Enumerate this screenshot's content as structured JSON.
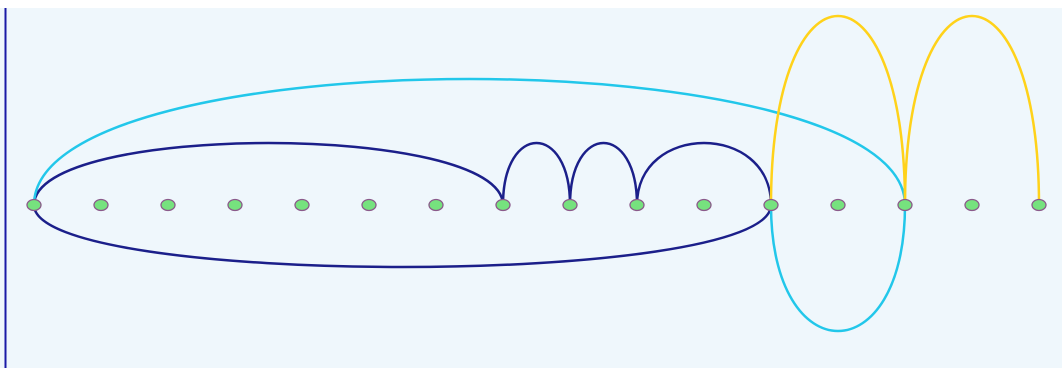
{
  "diagram": {
    "type": "arc-diagram",
    "background_color": "#eff7fc",
    "border_color": "#1a1aa6",
    "node_fill_color": "#76e27e",
    "node_stroke_color": "#8a5a8a",
    "node_count": 16,
    "arcs": [
      {
        "from": 0,
        "to": 7,
        "side": "top",
        "color": "#1b1f8a",
        "height": 62
      },
      {
        "from": 7,
        "to": 8,
        "side": "top",
        "color": "#1b1f8a",
        "height": 62
      },
      {
        "from": 8,
        "to": 9,
        "side": "top",
        "color": "#1b1f8a",
        "height": 62
      },
      {
        "from": 9,
        "to": 11,
        "side": "top",
        "color": "#1b1f8a",
        "height": 62
      },
      {
        "from": 0,
        "to": 11,
        "side": "bottom",
        "color": "#1b1f8a",
        "height": 62
      },
      {
        "from": 0,
        "to": 13,
        "side": "top",
        "color": "#22c7ea",
        "height": 126
      },
      {
        "from": 11,
        "to": 13,
        "side": "bottom",
        "color": "#22c7ea",
        "height": 126
      },
      {
        "from": 11,
        "to": 13,
        "side": "top",
        "color": "#ffd21a",
        "height": 189
      },
      {
        "from": 13,
        "to": 15,
        "side": "top",
        "color": "#ffd21a",
        "height": 189
      }
    ]
  }
}
